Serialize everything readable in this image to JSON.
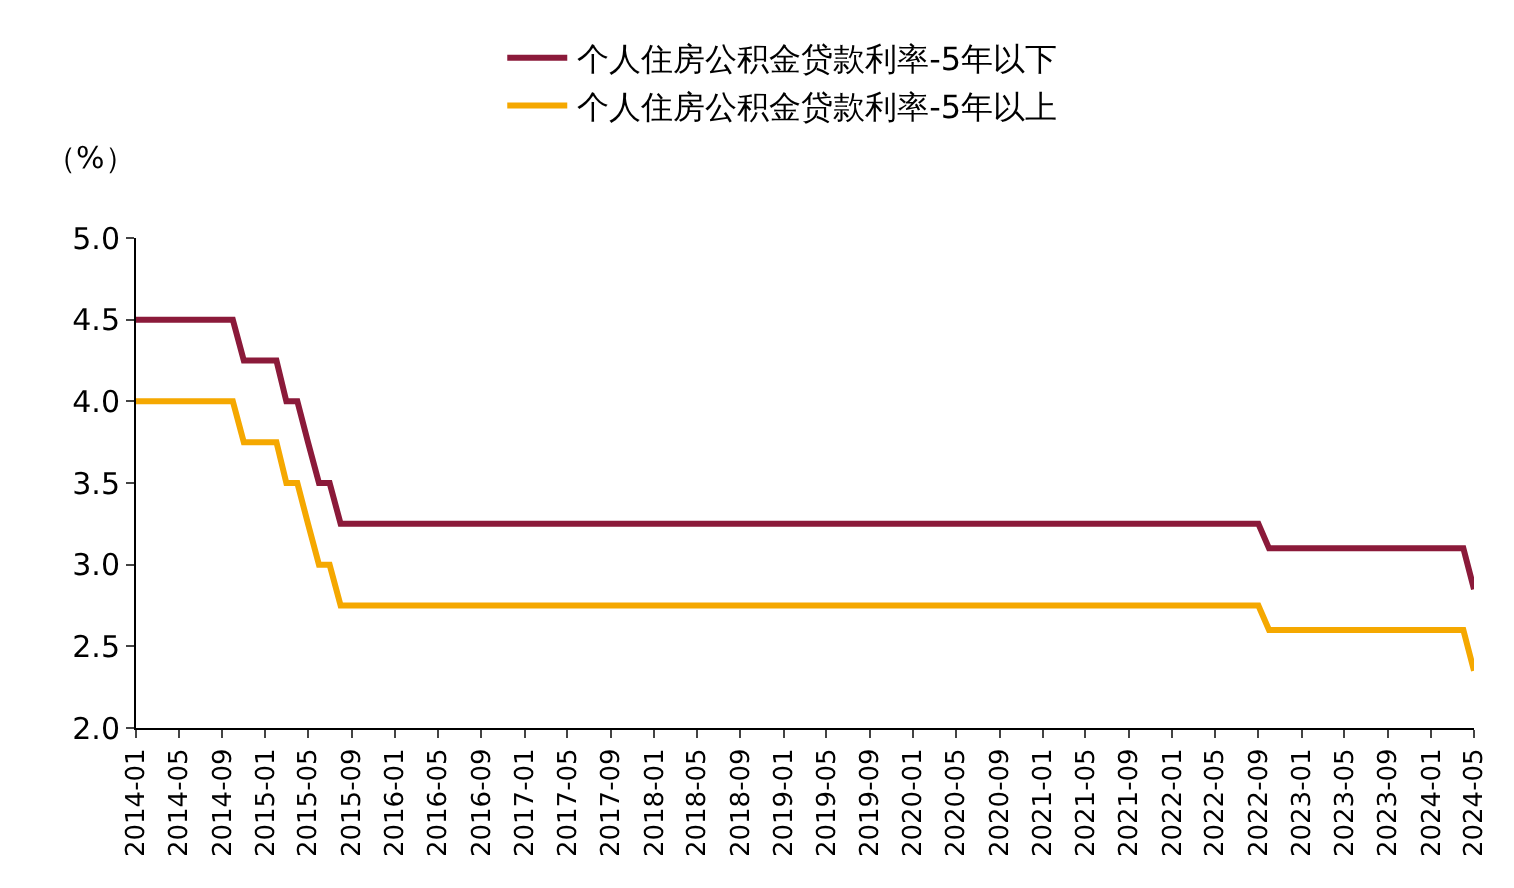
{
  "chart_data": {
    "type": "line",
    "ylabel": "（%）",
    "legend": "top",
    "marker": "none",
    "line_style": "solid",
    "series": [
      {
        "name": "个人住房公积金贷款利率-5年以下",
        "color": "#8b1a3a",
        "x": [
          "2014-01",
          "2014-10",
          "2014-11",
          "2015-02",
          "2015-03",
          "2015-04",
          "2015-05",
          "2015-06",
          "2015-07",
          "2015-08",
          "2022-09",
          "2022-10",
          "2024-04",
          "2024-05"
        ],
        "values": [
          4.5,
          4.5,
          4.25,
          4.25,
          4.0,
          4.0,
          3.75,
          3.5,
          3.5,
          3.25,
          3.25,
          3.1,
          3.1,
          2.85
        ]
      },
      {
        "name": "个人住房公积金贷款利率-5年以上",
        "color": "#f5a800",
        "x": [
          "2014-01",
          "2014-10",
          "2014-11",
          "2015-02",
          "2015-03",
          "2015-04",
          "2015-05",
          "2015-06",
          "2015-07",
          "2015-08",
          "2022-09",
          "2022-10",
          "2024-04",
          "2024-05"
        ],
        "values": [
          4.0,
          4.0,
          3.75,
          3.75,
          3.5,
          3.5,
          3.25,
          3.0,
          3.0,
          2.75,
          2.75,
          2.6,
          2.6,
          2.35
        ]
      }
    ],
    "xlim": [
      "2014-01",
      "2024-05"
    ],
    "xticks": [
      {
        "value": "2014-01",
        "label": "2014-01"
      },
      {
        "value": "2014-05",
        "label": "2014-05"
      },
      {
        "value": "2014-09",
        "label": "2014-09"
      },
      {
        "value": "2015-01",
        "label": "2015-01"
      },
      {
        "value": "2015-05",
        "label": "2015-05"
      },
      {
        "value": "2015-09",
        "label": "2015-09"
      },
      {
        "value": "2016-01",
        "label": "2016-01"
      },
      {
        "value": "2016-05",
        "label": "2016-05"
      },
      {
        "value": "2016-09",
        "label": "2016-09"
      },
      {
        "value": "2017-01",
        "label": "2017-01"
      },
      {
        "value": "2017-05",
        "label": "2017-05"
      },
      {
        "value": "2017-09",
        "label": "2017-09"
      },
      {
        "value": "2018-01",
        "label": "2018-01"
      },
      {
        "value": "2018-05",
        "label": "2018-05"
      },
      {
        "value": "2018-09",
        "label": "2018-09"
      },
      {
        "value": "2019-01",
        "label": "2019-01"
      },
      {
        "value": "2019-05",
        "label": "2019-05"
      },
      {
        "value": "2019-09",
        "label": "2019-09"
      },
      {
        "value": "2020-01",
        "label": "2020-01"
      },
      {
        "value": "2020-05",
        "label": "2020-05"
      },
      {
        "value": "2020-09",
        "label": "2020-09"
      },
      {
        "value": "2021-01",
        "label": "2021-01"
      },
      {
        "value": "2021-05",
        "label": "2021-05"
      },
      {
        "value": "2021-09",
        "label": "2021-09"
      },
      {
        "value": "2022-01",
        "label": "2022-01"
      },
      {
        "value": "2022-05",
        "label": "2022-05"
      },
      {
        "value": "2022-09",
        "label": "2022-09"
      },
      {
        "value": "2023-01",
        "label": "2023-01"
      },
      {
        "value": "2023-05",
        "label": "2023-05"
      },
      {
        "value": "2023-09",
        "label": "2023-09"
      },
      {
        "value": "2024-01",
        "label": "2024-01"
      },
      {
        "value": "2024-05",
        "label": "2024-05"
      }
    ],
    "ylim": [
      2.0,
      5.0
    ],
    "yticks": [
      {
        "value": 2.0,
        "label": "2.0"
      },
      {
        "value": 2.5,
        "label": "2.5"
      },
      {
        "value": 3.0,
        "label": "3.0"
      },
      {
        "value": 3.5,
        "label": "3.5"
      },
      {
        "value": 4.0,
        "label": "4.0"
      },
      {
        "value": 4.5,
        "label": "4.5"
      },
      {
        "value": 5.0,
        "label": "5.0"
      }
    ]
  }
}
